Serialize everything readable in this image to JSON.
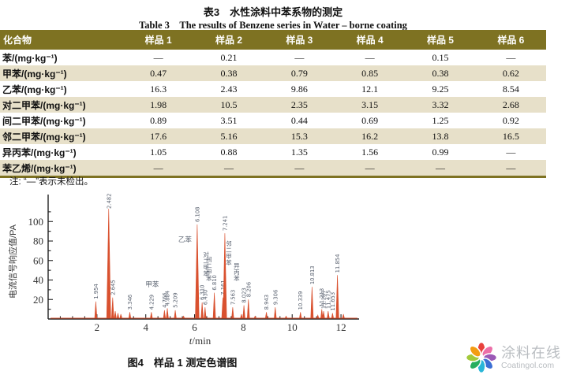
{
  "table": {
    "title_cn": "表3　水性涂料中苯系物的测定",
    "title_en": "Table 3　The results of Benzene series in Water – borne coating",
    "header_bg": "#7e7222",
    "stripe_bg": "#e7e0c9",
    "columns": [
      "化合物",
      "样品 1",
      "样品 2",
      "样品 3",
      "样品 4",
      "样品 5",
      "样品 6"
    ],
    "rows": [
      {
        "compound": "苯/(mg·kg⁻¹)",
        "values": [
          "—",
          "0.21",
          "—",
          "—",
          "0.15",
          "—"
        ]
      },
      {
        "compound": "甲苯/(mg·kg⁻¹)",
        "values": [
          "0.47",
          "0.38",
          "0.79",
          "0.85",
          "0.38",
          "0.62"
        ]
      },
      {
        "compound": "乙苯/(mg·kg⁻¹)",
        "values": [
          "16.3",
          "2.43",
          "9.86",
          "12.1",
          "9.25",
          "8.54"
        ]
      },
      {
        "compound": "对二甲苯/(mg·kg⁻¹)",
        "values": [
          "1.98",
          "10.5",
          "2.35",
          "3.15",
          "3.32",
          "2.68"
        ]
      },
      {
        "compound": "间二甲苯/(mg·kg⁻¹)",
        "values": [
          "0.89",
          "3.51",
          "0.44",
          "0.69",
          "1.25",
          "0.92"
        ]
      },
      {
        "compound": "邻二甲苯/(mg·kg⁻¹)",
        "values": [
          "17.6",
          "5.16",
          "15.3",
          "16.2",
          "13.8",
          "16.5"
        ]
      },
      {
        "compound": "异丙苯/(mg·kg⁻¹)",
        "values": [
          "1.05",
          "0.88",
          "1.35",
          "1.56",
          "0.99",
          "—"
        ]
      },
      {
        "compound": "苯乙烯/(mg·kg⁻¹)",
        "values": [
          "—",
          "—",
          "—",
          "—",
          "—",
          "—"
        ]
      }
    ],
    "note": "注: “—”表示未检出。"
  },
  "chart_data": {
    "type": "line",
    "title": "",
    "xlabel": "t/min",
    "ylabel": "电流信号响应值/PA",
    "xlim": [
      0,
      12.45
    ],
    "ylim": [
      0,
      118
    ],
    "xticks": [
      2,
      4,
      6,
      8,
      10,
      12
    ],
    "yticks": [
      20,
      40,
      60,
      80,
      100
    ],
    "grid": false,
    "legend": "none",
    "peak_color": "#d9512f",
    "label_color": "#5a6270",
    "peaks": [
      {
        "t": 1.954,
        "h": 18,
        "label": "1.954"
      },
      {
        "t": 2.482,
        "h": 113,
        "label": "2.482"
      },
      {
        "t": 2.645,
        "h": 22,
        "label": "2.645"
      },
      {
        "t": 2.75,
        "h": 8,
        "label": ""
      },
      {
        "t": 2.86,
        "h": 6,
        "label": ""
      },
      {
        "t": 2.98,
        "h": 5,
        "label": ""
      },
      {
        "t": 3.346,
        "h": 7,
        "label": "3.346"
      },
      {
        "t": 4.229,
        "h": 7,
        "label": "4.229"
      },
      {
        "t": 4.766,
        "h": 9,
        "label": "4.766",
        "compound": "甲苯",
        "compound_style": "horizontal"
      },
      {
        "t": 4.884,
        "h": 11,
        "label": "4.884"
      },
      {
        "t": 5.209,
        "h": 9,
        "label": "5.209"
      },
      {
        "t": 5.55,
        "h": 3,
        "label": ""
      },
      {
        "t": 6.108,
        "h": 97,
        "label": "6.108",
        "compound": "乙苯",
        "compound_style": "horizontal"
      },
      {
        "t": 6.31,
        "h": 17,
        "label": "6.310",
        "compound": "对二甲苯",
        "compound_style": "vertical"
      },
      {
        "t": 6.43,
        "h": 12,
        "label": "6.430",
        "compound": "间二甲苯",
        "compound_style": "vertical"
      },
      {
        "t": 6.81,
        "h": 27,
        "label": "6.810"
      },
      {
        "t": 7.161,
        "h": 22,
        "label": "7.161"
      },
      {
        "t": 7.241,
        "h": 88,
        "label": "7.241",
        "compound": "邻二甲苯",
        "compound_style": "vertical-below"
      },
      {
        "t": 7.563,
        "h": 12,
        "label": "7.563",
        "compound": "异丙苯",
        "compound_style": "vertical"
      },
      {
        "t": 7.92,
        "h": 5,
        "label": ""
      },
      {
        "t": 8.023,
        "h": 14,
        "label": "8.023"
      },
      {
        "t": 8.206,
        "h": 20,
        "label": "8.206"
      },
      {
        "t": 8.48,
        "h": 3,
        "label": ""
      },
      {
        "t": 8.943,
        "h": 7,
        "label": "8.943"
      },
      {
        "t": 9.306,
        "h": 12,
        "label": "9.306"
      },
      {
        "t": 9.75,
        "h": 3,
        "label": ""
      },
      {
        "t": 10.339,
        "h": 7,
        "label": "10.339"
      },
      {
        "t": 10.813,
        "h": 33,
        "label": "10.813"
      },
      {
        "t": 11.05,
        "h": 4,
        "label": ""
      },
      {
        "t": 11.213,
        "h": 10,
        "label": "11.213"
      },
      {
        "t": 11.287,
        "h": 8,
        "label": "11.287"
      },
      {
        "t": 11.475,
        "h": 8,
        "label": "11.475"
      },
      {
        "t": 11.653,
        "h": 6,
        "label": "11.653"
      },
      {
        "t": 11.854,
        "h": 45,
        "label": "11.854"
      },
      {
        "t": 12.1,
        "h": 5,
        "label": ""
      }
    ],
    "caption": "图4　样品 1 测定色谱图"
  },
  "logo": {
    "name_cn": "涂料在线",
    "domain": "Coatingol.com",
    "petal_colors": [
      "#e8413c",
      "#ec6fa8",
      "#9b59b6",
      "#3b6fd4",
      "#29b6d8",
      "#27ae60",
      "#a3c93a",
      "#f39c12"
    ]
  }
}
